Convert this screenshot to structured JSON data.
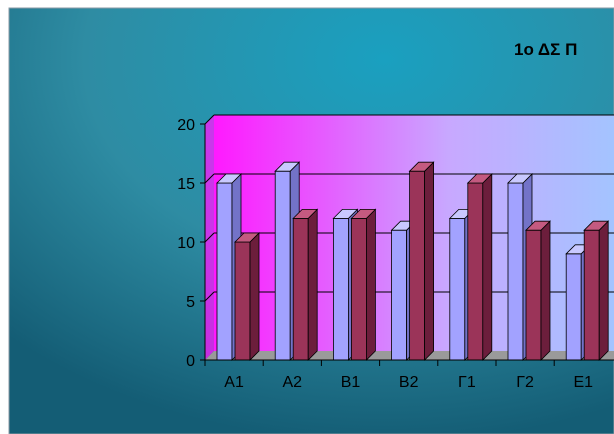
{
  "colors": {
    "slide_outer": "#2e8ca3",
    "slide_center": "#1aa0c0",
    "slide_edge": "#145d75",
    "plot_left": "#ff19ff",
    "plot_mid": "#c8a8ff",
    "plot_right": "#9ec8ff",
    "floor": "#9a9a9a",
    "floor_side": "#707070",
    "series1_front": "#a2a2ff",
    "series1_side": "#7373c8",
    "series1_top": "#c9c9ff",
    "series2_front": "#9b3459",
    "series2_side": "#6c1e3c",
    "series2_top": "#c45a80",
    "gridline": "#000000",
    "axis": "#000000"
  },
  "chart_data": {
    "type": "bar",
    "title": "1ο ΔΣ Π",
    "categories": [
      "Α1",
      "Α2",
      "Β1",
      "Β2",
      "Γ1",
      "Γ2",
      "Ε1"
    ],
    "series": [
      {
        "values": [
          15,
          16,
          12,
          11,
          12,
          15,
          9
        ]
      },
      {
        "values": [
          10,
          12,
          12,
          16,
          15,
          11,
          11
        ]
      }
    ],
    "ylim": [
      0,
      20
    ],
    "yticks": [
      0,
      5,
      10,
      15,
      20
    ],
    "grid": true,
    "three_d": true
  }
}
